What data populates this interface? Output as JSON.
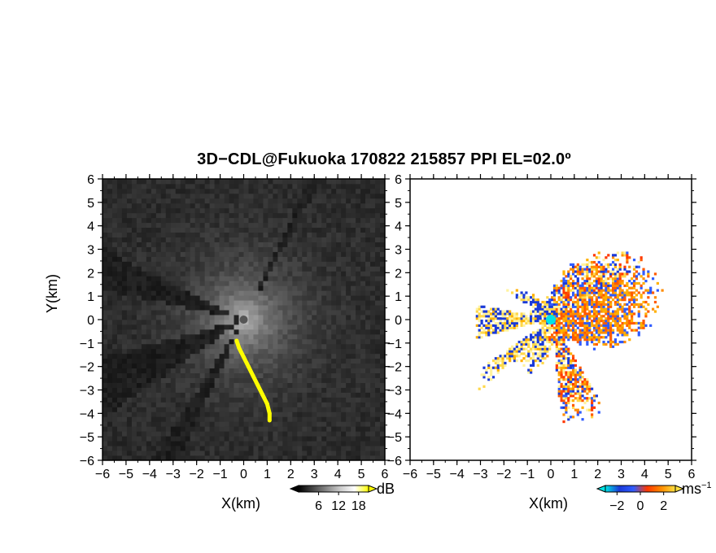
{
  "title": "3D−CDL@Fukuoka 170822 215857 PPI EL=02.0º",
  "colors": {
    "yellow_overlay": "#ffff00",
    "cyan_marker": "#00e5e5",
    "velocity_neg": "#1a3ad8",
    "velocity_zero": "#ff3800",
    "velocity_pos": "#ffe040"
  },
  "chart_data": [
    {
      "type": "heatmap",
      "name_hint": "left-panel",
      "quantity": "backscatter intensity (grayscale)",
      "xlabel": "X(km)",
      "ylabel": "Y(km)",
      "xlim": [
        -6,
        6
      ],
      "ylim": [
        -6,
        6
      ],
      "xticks": [
        "−6",
        "−5",
        "−4",
        "−3",
        "−2",
        "−1",
        "0",
        "1",
        "2",
        "3",
        "4",
        "5",
        "6"
      ],
      "yticks": [
        "6",
        "5",
        "4",
        "3",
        "2",
        "1",
        "0",
        "−1",
        "−2",
        "−3",
        "−4",
        "−5",
        "−6"
      ],
      "colorbar": {
        "unit": "dB",
        "ticks": [
          "6",
          "12",
          "18"
        ],
        "tick_values": [
          6,
          12,
          18
        ],
        "range": [
          0,
          21
        ]
      },
      "yellow_trace": [
        [
          -0.3,
          -0.9
        ],
        [
          -0.2,
          -1.2
        ],
        [
          0.0,
          -1.6
        ],
        [
          0.2,
          -2.0
        ],
        [
          0.4,
          -2.4
        ],
        [
          0.6,
          -2.8
        ],
        [
          0.8,
          -3.2
        ],
        [
          1.0,
          -3.6
        ],
        [
          1.1,
          -4.0
        ],
        [
          1.1,
          -4.3
        ]
      ],
      "shadow_sectors_deg": [
        [
          153,
          168
        ],
        [
          195,
          215
        ],
        [
          237,
          245
        ],
        [
          61,
          65
        ]
      ],
      "radar_center": [
        0,
        0
      ]
    },
    {
      "type": "heatmap",
      "name_hint": "right-panel",
      "quantity": "Doppler velocity",
      "xlabel": "X(km)",
      "ylabel": "",
      "xlim": [
        -6,
        6
      ],
      "ylim": [
        -6,
        6
      ],
      "xticks": [
        "−6",
        "−5",
        "−4",
        "−3",
        "−2",
        "−1",
        "0",
        "1",
        "2",
        "3",
        "4",
        "5",
        "6"
      ],
      "yticks": [
        "6",
        "5",
        "4",
        "3",
        "2",
        "1",
        "0",
        "−1",
        "−2",
        "−3",
        "−4",
        "−5",
        "−6"
      ],
      "colorbar": {
        "unit": "ms",
        "unit_exp": "−1",
        "ticks": [
          "−2",
          "0",
          "2"
        ],
        "tick_values": [
          -2,
          0,
          2
        ],
        "range": [
          -3,
          3
        ]
      },
      "radar_center": [
        0,
        0
      ]
    }
  ]
}
